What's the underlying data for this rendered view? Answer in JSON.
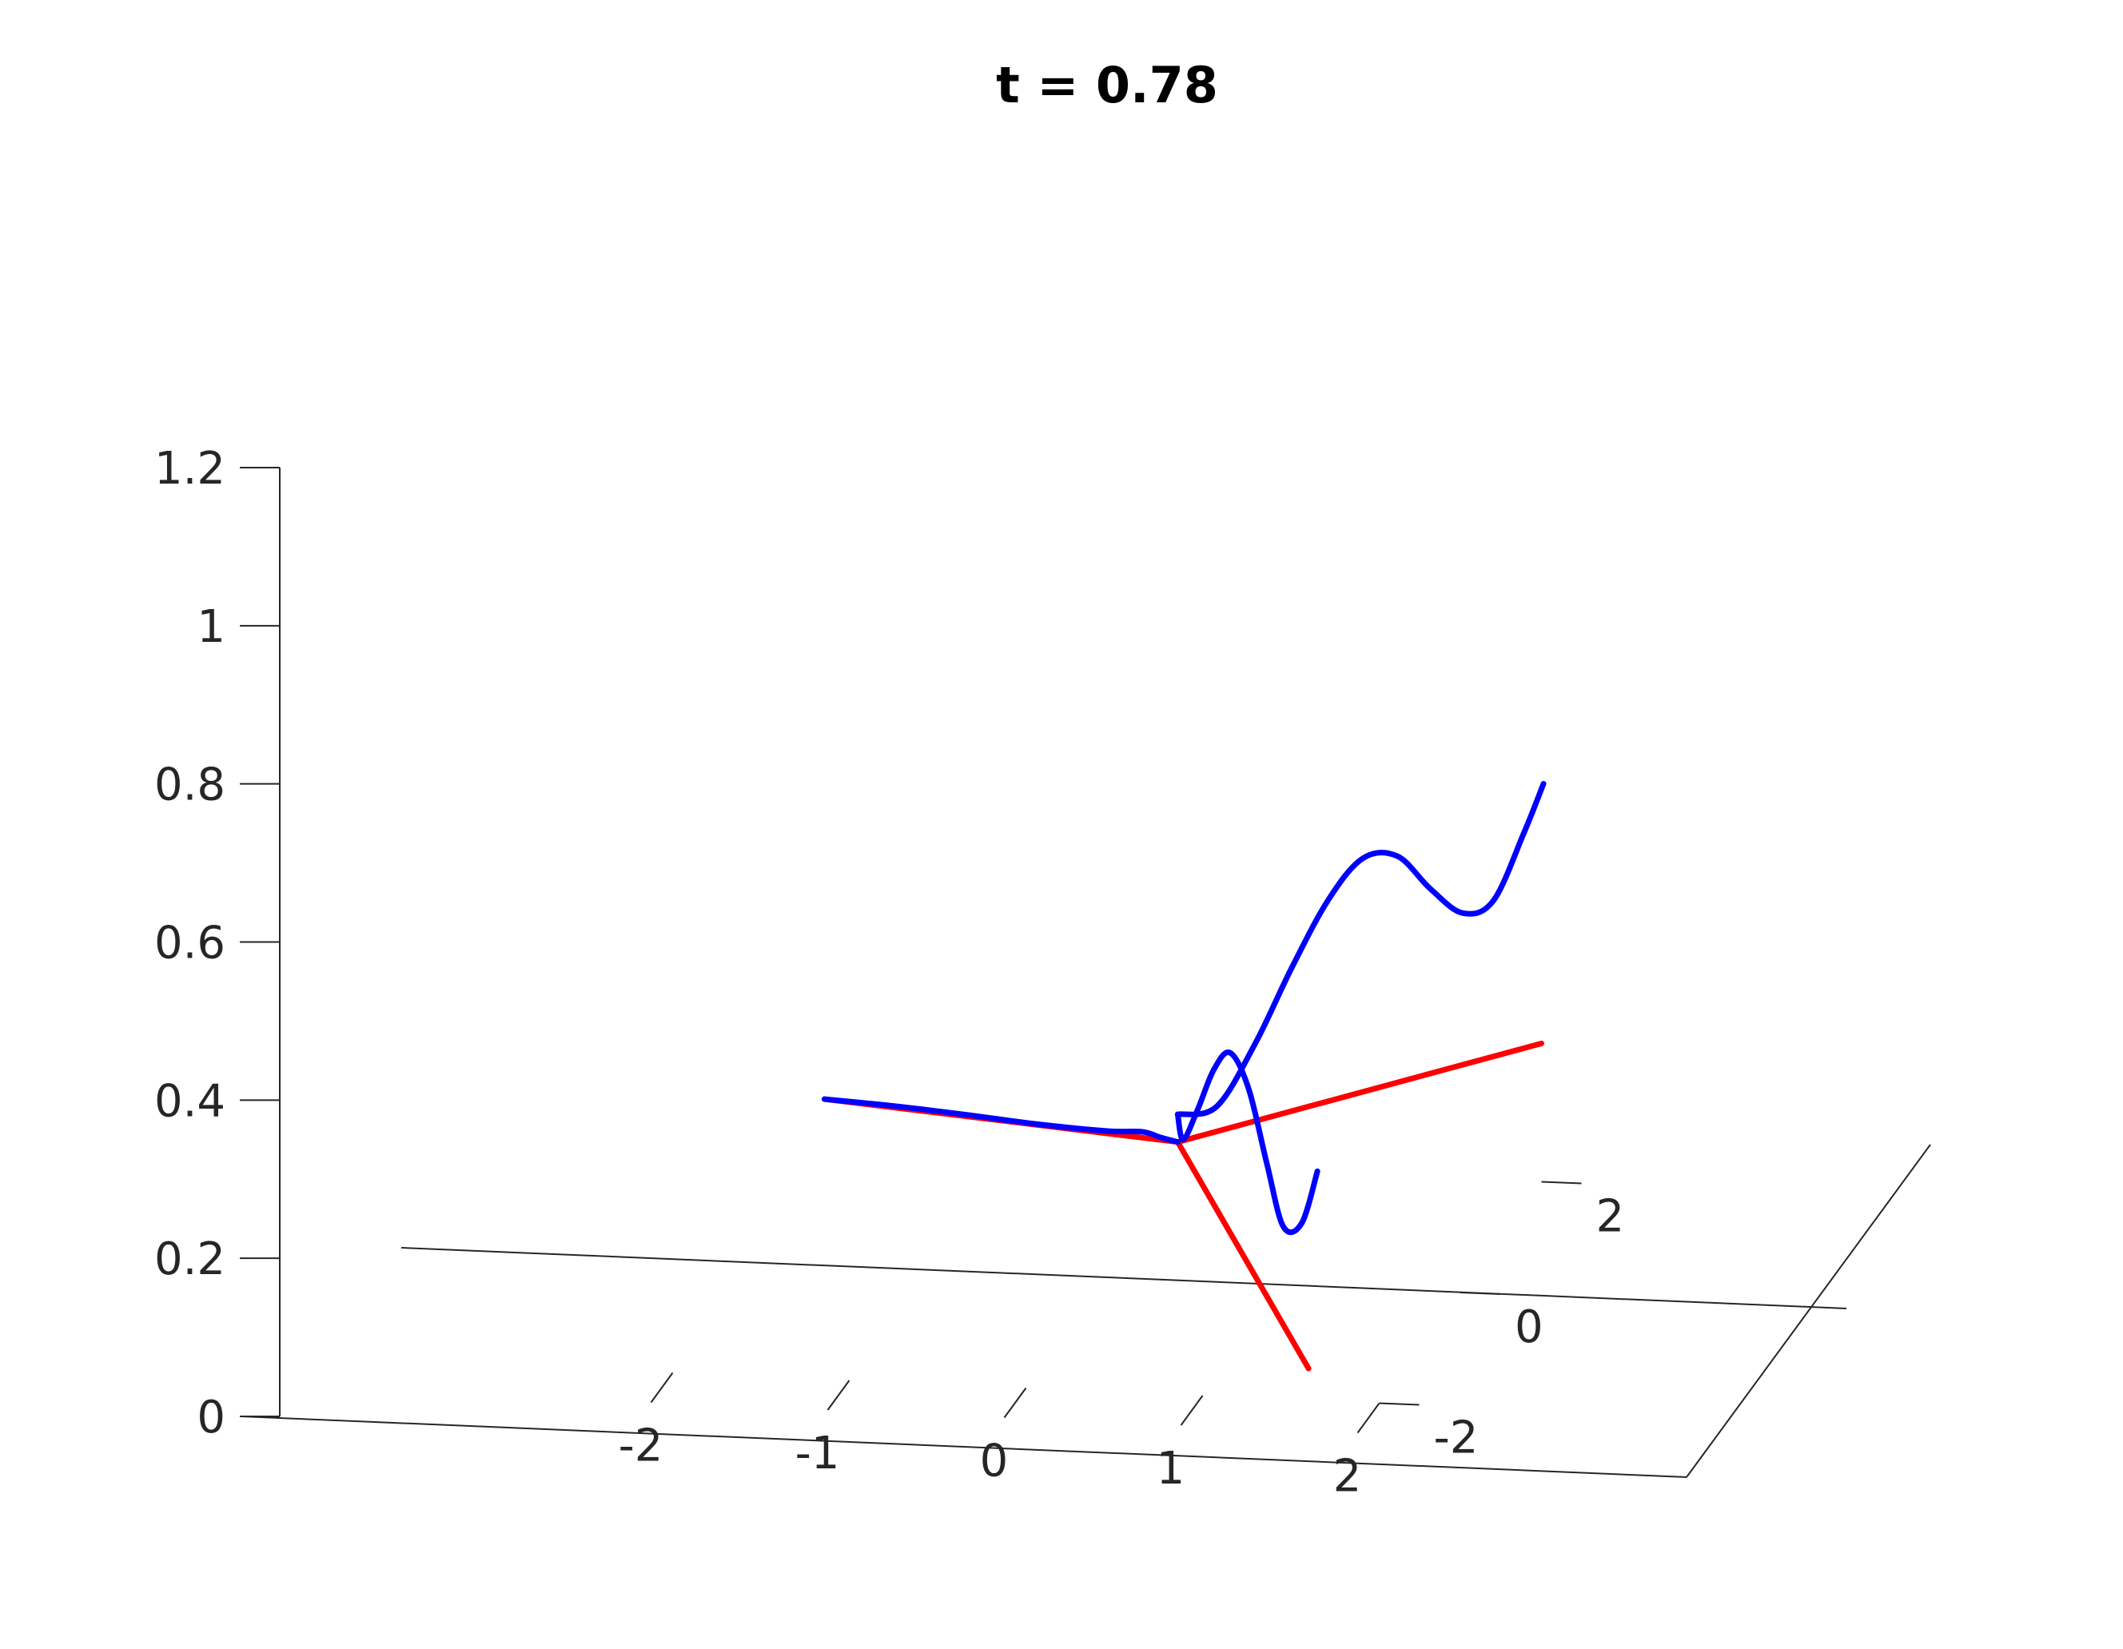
{
  "chart_data": {
    "type": "line",
    "title": "t = 0.78",
    "xlabel": "",
    "ylabel": "",
    "zlabel": "",
    "xlim": [
      -2,
      2
    ],
    "ylim": [
      -2,
      2
    ],
    "zlim": [
      0,
      1.2
    ],
    "x_ticks": [
      "-2",
      "-1",
      "0",
      "1",
      "2"
    ],
    "y_ticks": [
      "-2",
      "0",
      "2"
    ],
    "z_ticks": [
      "0",
      "0.2",
      "0.4",
      "0.6",
      "0.8",
      "1",
      "1.2"
    ],
    "grid": false,
    "legend": "none",
    "colors": {
      "tangent_lines": "#ff0000",
      "curves": "#0000ff"
    },
    "series": [
      {
        "color": "#ff0000",
        "points": [
          [
            -1.6,
            0,
            0.21
          ],
          [
            0.4,
            0,
            0.175
          ],
          [
            2.0,
            2.0,
            0.175
          ]
        ]
      },
      {
        "color": "#ff0000",
        "points": [
          [
            0.4,
            0,
            0.175
          ],
          [
            1.6,
            -2.0,
            0.04
          ]
        ]
      },
      {
        "color": "#0000ff",
        "points": [
          [
            -1.6,
            0,
            0.21
          ],
          [
            -1.2,
            0,
            0.205
          ],
          [
            -0.8,
            0,
            0.198
          ],
          [
            -0.4,
            0,
            0.19
          ],
          [
            0.0,
            0,
            0.185
          ],
          [
            0.2,
            0,
            0.186
          ],
          [
            0.3,
            0,
            0.18
          ],
          [
            0.4,
            0,
            0.175
          ]
        ]
      },
      {
        "color": "#0000ff",
        "points": [
          [
            0.4,
            0,
            0.21
          ],
          [
            0.55,
            0.3,
            0.2
          ],
          [
            0.7,
            0.6,
            0.26
          ],
          [
            0.85,
            0.85,
            0.34
          ],
          [
            1.0,
            1.1,
            0.41
          ],
          [
            1.15,
            1.3,
            0.45
          ],
          [
            1.3,
            1.5,
            0.44
          ],
          [
            1.45,
            1.65,
            0.39
          ],
          [
            1.6,
            1.8,
            0.35
          ],
          [
            1.75,
            1.9,
            0.36
          ],
          [
            1.9,
            2.0,
            0.44
          ],
          [
            2.0,
            2.05,
            0.5
          ]
        ]
      },
      {
        "color": "#0000ff",
        "points": [
          [
            0.4,
            0,
            0.21
          ],
          [
            0.5,
            -0.3,
            0.2
          ],
          [
            0.65,
            -0.6,
            0.26
          ],
          [
            0.8,
            -0.85,
            0.33
          ],
          [
            0.95,
            -1.1,
            0.37
          ],
          [
            1.1,
            -1.3,
            0.34
          ],
          [
            1.25,
            -1.5,
            0.26
          ],
          [
            1.4,
            -1.75,
            0.2
          ],
          [
            1.55,
            -1.95,
            0.22
          ],
          [
            1.65,
            -2.0,
            0.29
          ]
        ]
      }
    ]
  }
}
